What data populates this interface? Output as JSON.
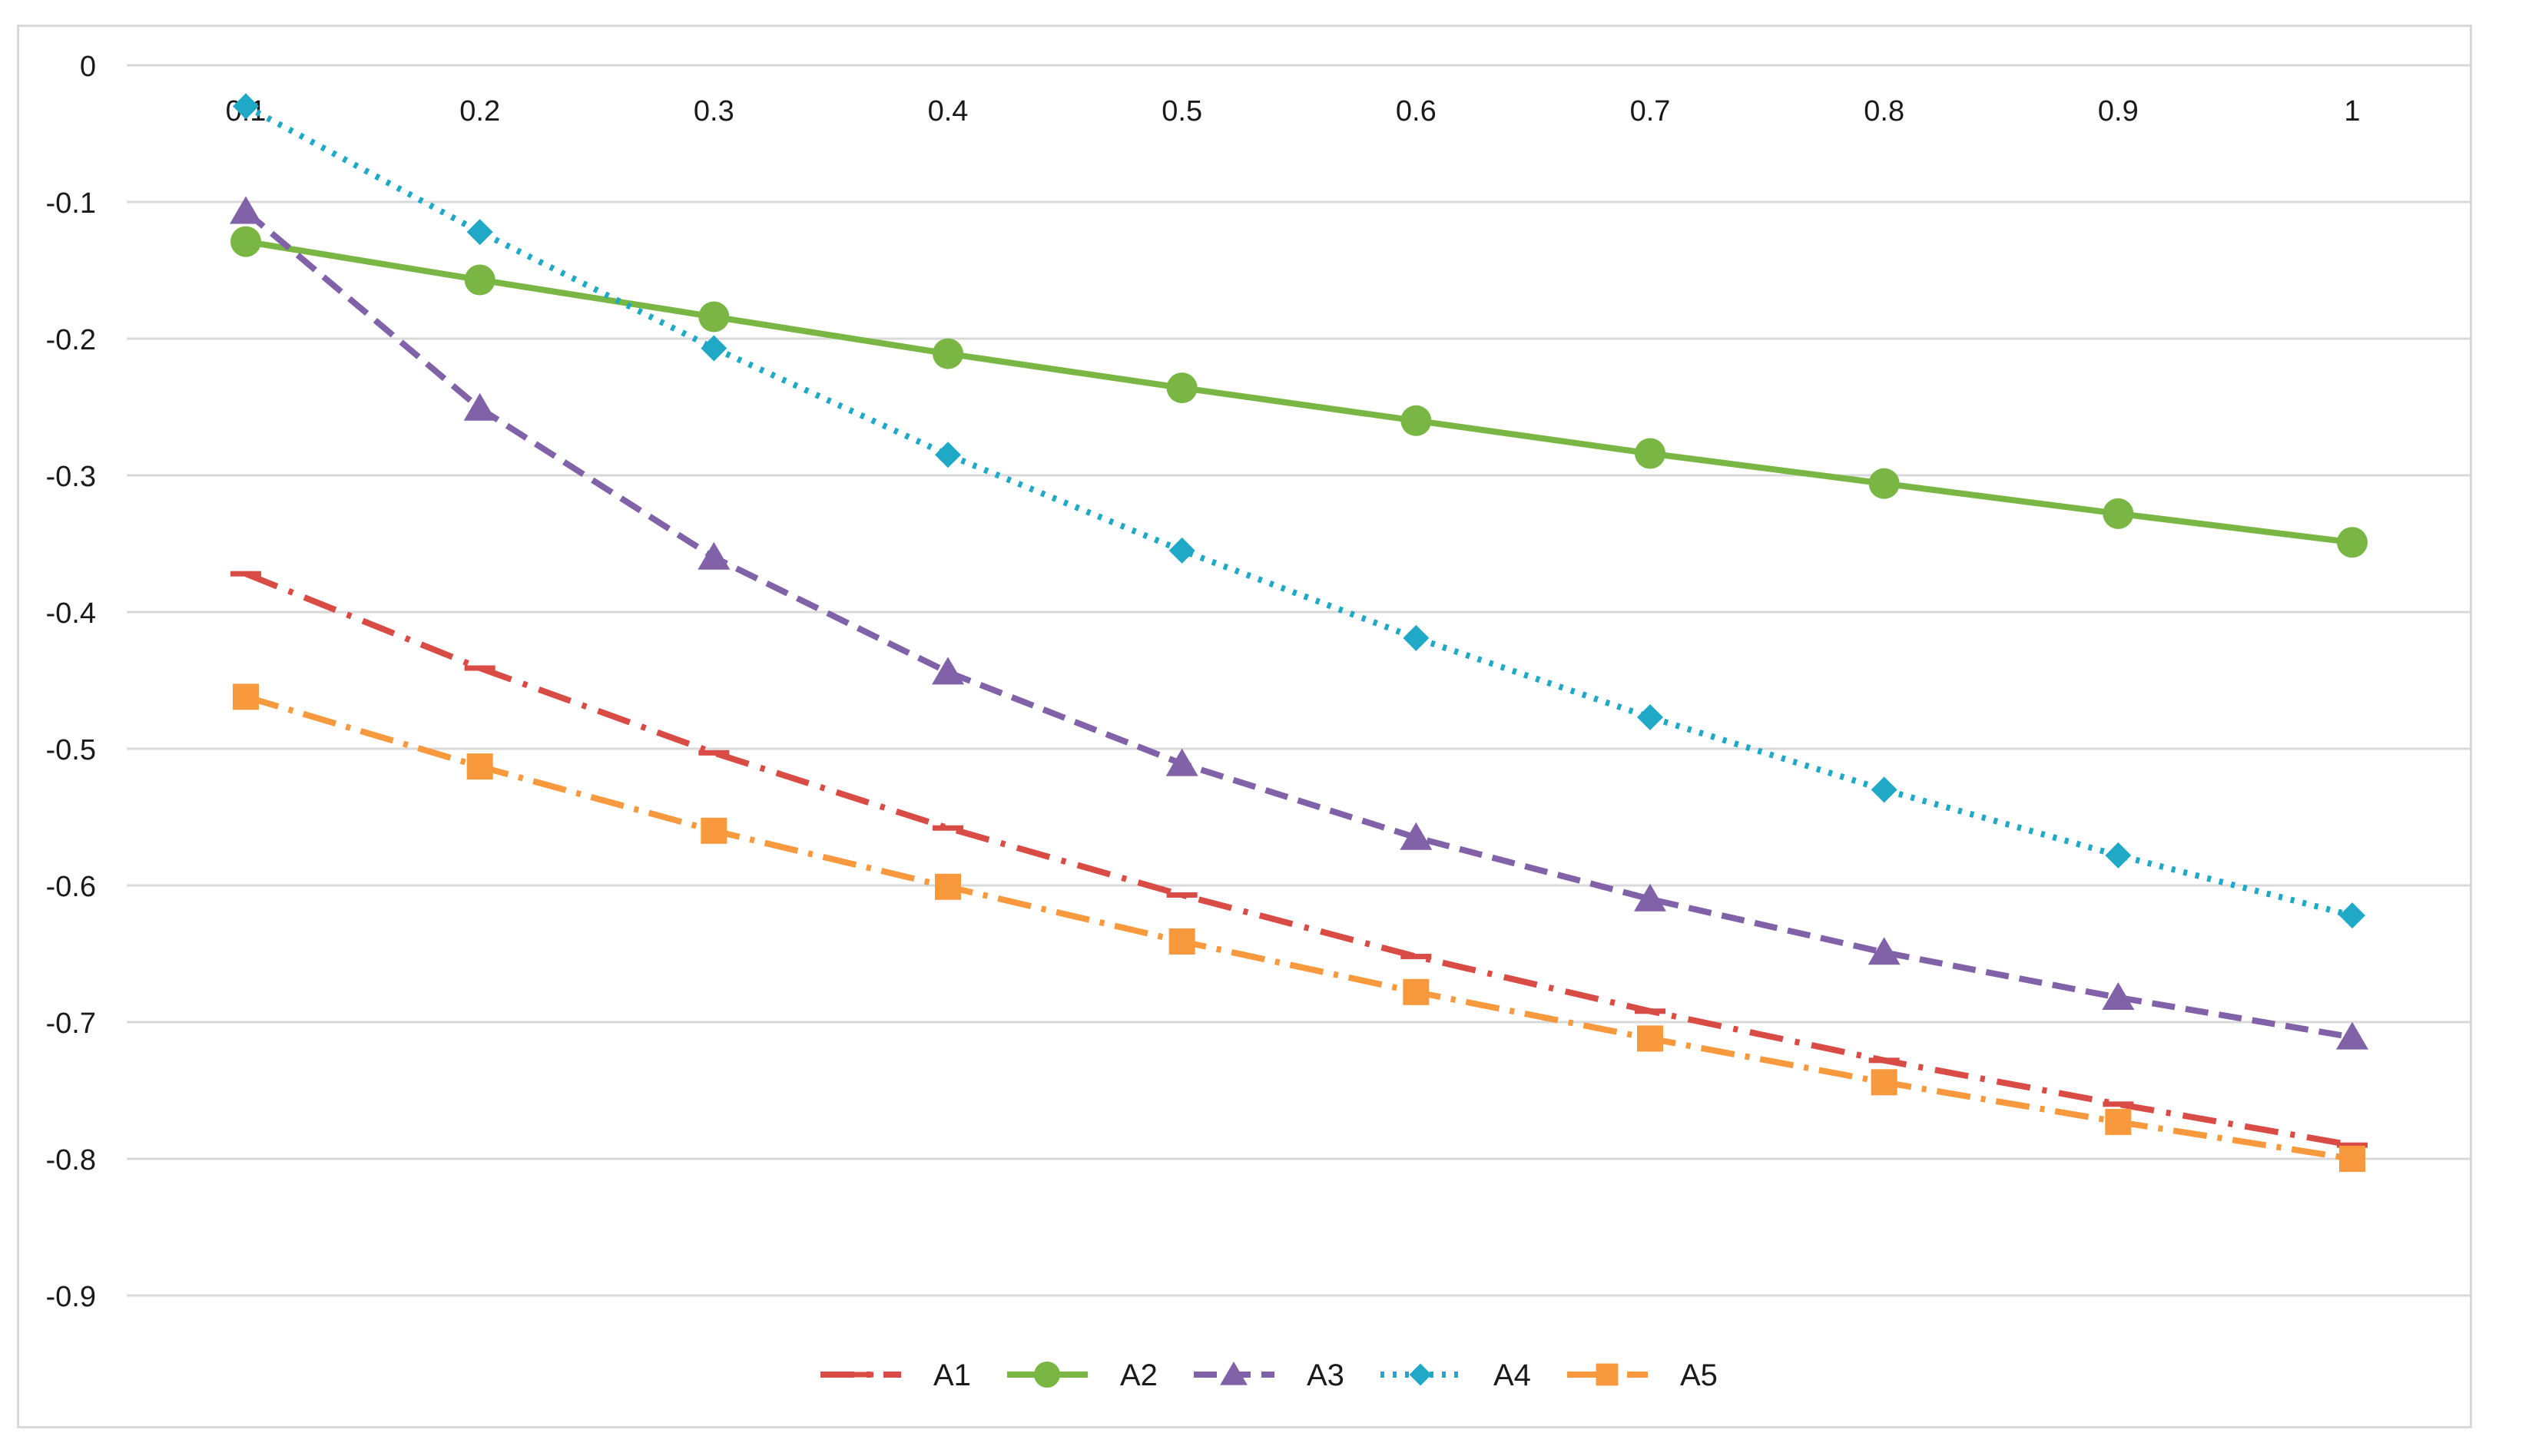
{
  "chart_data": {
    "type": "line",
    "title": "",
    "xlabel": "",
    "ylabel": "",
    "x": [
      "0.1",
      "0.2",
      "0.3",
      "0.4",
      "0.5",
      "0.6",
      "0.7",
      "0.8",
      "0.9",
      "1"
    ],
    "ylim": [
      -0.9,
      0
    ],
    "yticks": [
      "0",
      "-0.1",
      "-0.2",
      "-0.3",
      "-0.4",
      "-0.5",
      "-0.6",
      "-0.7",
      "-0.8",
      "-0.9"
    ],
    "ytick_values": [
      0,
      -0.1,
      -0.2,
      -0.3,
      -0.4,
      -0.5,
      -0.6,
      -0.7,
      -0.8,
      -0.9
    ],
    "grid": true,
    "legend_position": "bottom",
    "series": [
      {
        "name": "A1",
        "color": "#d94c45",
        "dash": "long-dash-dot",
        "marker": "dash",
        "values": [
          -0.372,
          -0.441,
          -0.503,
          -0.558,
          -0.607,
          -0.652,
          -0.692,
          -0.728,
          -0.76,
          -0.79
        ]
      },
      {
        "name": "A2",
        "color": "#79b644",
        "dash": "solid",
        "marker": "circle",
        "values": [
          -0.129,
          -0.157,
          -0.184,
          -0.211,
          -0.236,
          -0.26,
          -0.284,
          -0.306,
          -0.328,
          -0.349
        ]
      },
      {
        "name": "A3",
        "color": "#8162a8",
        "dash": "dash",
        "marker": "triangle",
        "values": [
          -0.107,
          -0.251,
          -0.36,
          -0.444,
          -0.511,
          -0.565,
          -0.61,
          -0.649,
          -0.682,
          -0.711
        ]
      },
      {
        "name": "A4",
        "color": "#1fa9c7",
        "dash": "dot",
        "marker": "diamond",
        "values": [
          -0.03,
          -0.122,
          -0.207,
          -0.285,
          -0.355,
          -0.419,
          -0.477,
          -0.53,
          -0.578,
          -0.622
        ]
      },
      {
        "name": "A5",
        "color": "#f7993c",
        "dash": "dash-dot",
        "marker": "square",
        "values": [
          -0.462,
          -0.513,
          -0.56,
          -0.601,
          -0.641,
          -0.678,
          -0.712,
          -0.744,
          -0.773,
          -0.8
        ]
      }
    ]
  }
}
